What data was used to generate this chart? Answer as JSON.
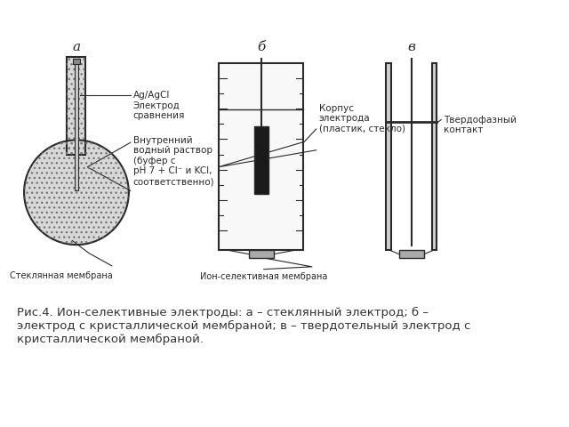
{
  "bg_color": "#ffffff",
  "fig_width": 6.4,
  "fig_height": 4.8,
  "caption": "Рис.4. Ион-селективные электроды: а – стеклянный электрод; б –\nэлектрод с кристаллической мембраной; в – твердотельный электрод с\nкристаллической мембраной.",
  "caption_fontsize": 9.5,
  "label_a": "а",
  "label_b": "б",
  "label_v": "в",
  "label_fontsize": 11,
  "text_AgAgCl": "Ag/AgCl\nЭлектрод\nсравнения",
  "text_inner": "Внутренний\nводный раствор\n(буфер с\npH 7 + Cl⁻ и KCl,\nсоответственно)",
  "text_glass_membrane": "Стеклянная мембрана",
  "text_ion_membrane": "Ион-селективная мембрана",
  "text_corpus": "Корпус\nэлектрода\n(пластик, стекло)",
  "text_solid": "Твердофазный\nконтакт"
}
